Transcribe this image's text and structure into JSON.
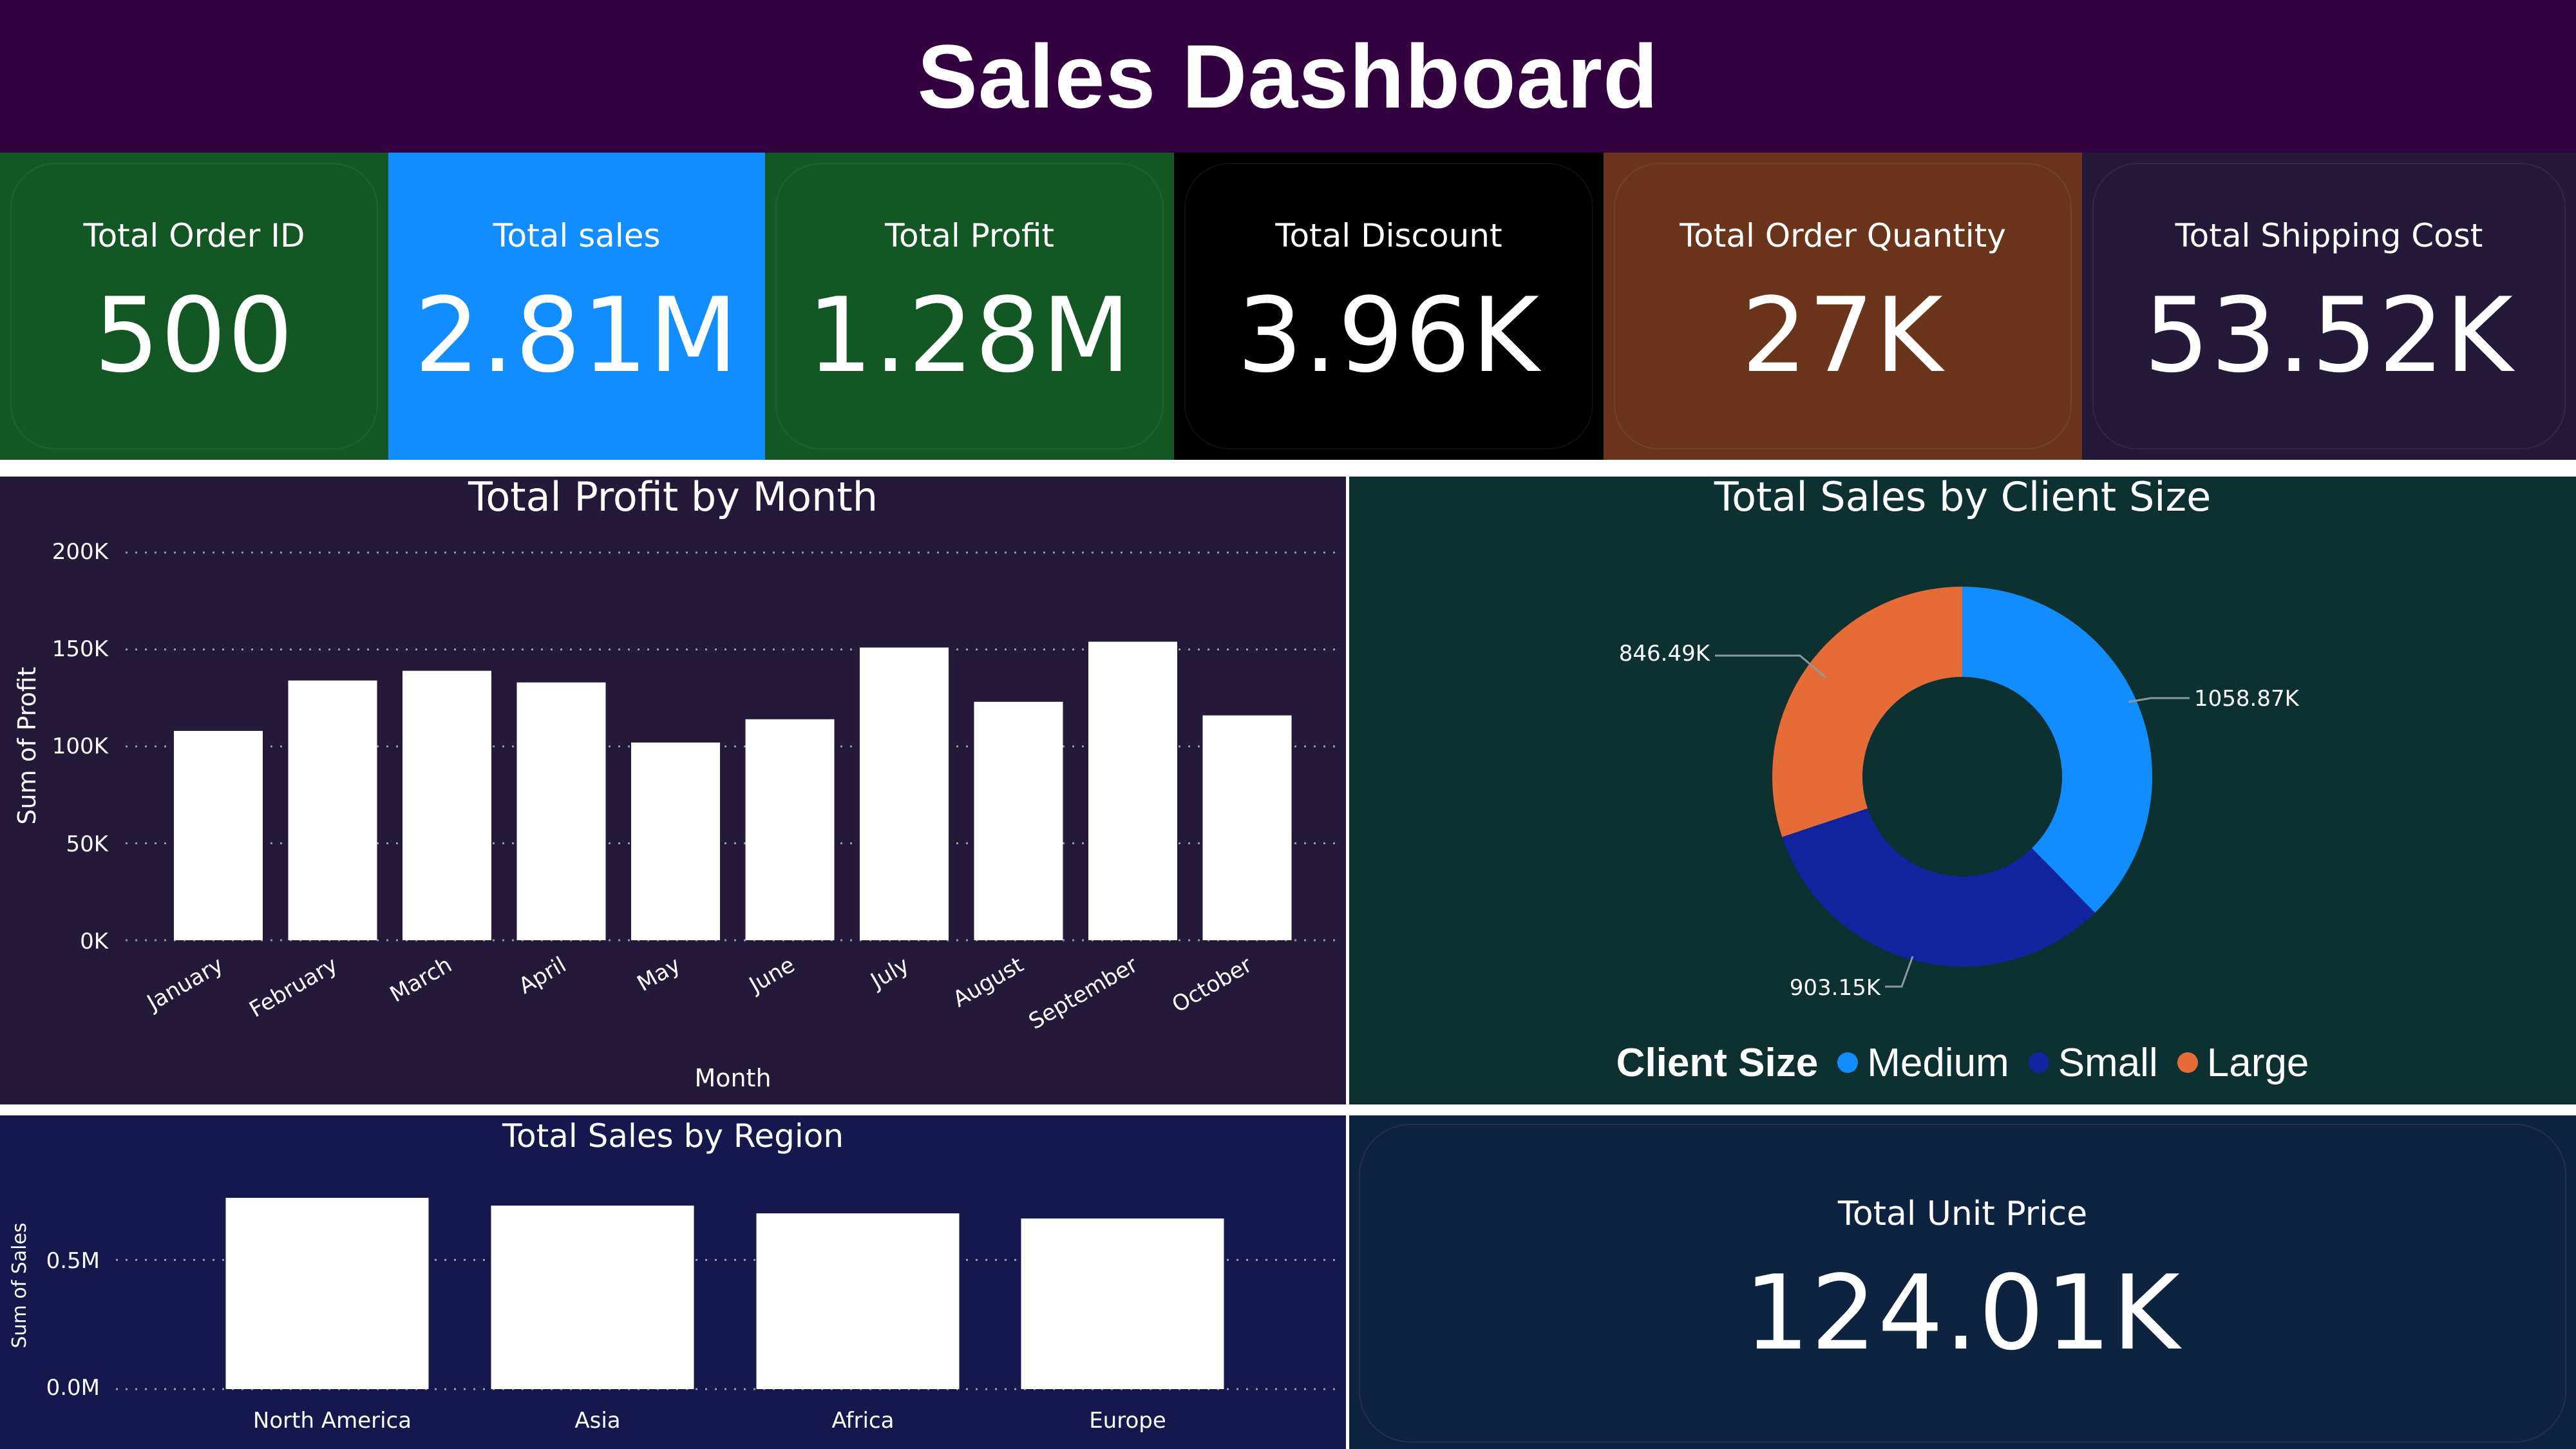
{
  "header": {
    "title": "Sales Dashboard"
  },
  "kpis": [
    {
      "label": "Total Order ID",
      "value": "500",
      "color": "#125724"
    },
    {
      "label": "Total sales",
      "value": "2.81M",
      "color": "#118dff"
    },
    {
      "label": "Total Profit",
      "value": "1.28M",
      "color": "#125724"
    },
    {
      "label": "Total Discount",
      "value": "3.96K",
      "color": "#000000"
    },
    {
      "label": "Total Order Quantity",
      "value": "27K",
      "color": "#6b351c"
    },
    {
      "label": "Total Shipping Cost",
      "value": "53.52K",
      "color": "#251939"
    }
  ],
  "profit_chart": {
    "title": "Total Profit by Month",
    "xlabel": "Month",
    "ylabel": "Sum of Profit",
    "y_ticks": [
      "0K",
      "50K",
      "100K",
      "150K",
      "200K"
    ]
  },
  "client_chart": {
    "title": "Total Sales by Client Size",
    "legend_title": "Client Size",
    "labels": [
      "1058.87K",
      "903.15K",
      "846.49K"
    ]
  },
  "region_chart": {
    "title": "Total Sales by Region",
    "ylabel": "Sum of Sales",
    "y_ticks": [
      "0.0M",
      "0.5M"
    ]
  },
  "unit_price": {
    "label": "Total Unit Price",
    "value": "124.01K"
  },
  "chart_data": [
    {
      "type": "bar",
      "title": "Total Profit by Month",
      "xlabel": "Month",
      "ylabel": "Sum of Profit",
      "categories": [
        "January",
        "February",
        "March",
        "April",
        "May",
        "June",
        "July",
        "August",
        "September",
        "October"
      ],
      "values": [
        108000,
        134000,
        139000,
        133000,
        102000,
        114000,
        151000,
        123000,
        154000,
        116000
      ],
      "ylim": [
        0,
        200000
      ],
      "grid": true
    },
    {
      "type": "pie",
      "title": "Total Sales by Client Size",
      "legend_title": "Client Size",
      "categories": [
        "Medium",
        "Small",
        "Large"
      ],
      "values": [
        1058.87,
        903.15,
        846.49
      ],
      "units": "K",
      "colors": [
        "#118dff",
        "#12239e",
        "#e66c37"
      ],
      "donut": true,
      "legend": "bottom"
    },
    {
      "type": "bar",
      "title": "Total Sales by Region",
      "ylabel": "Sum of Sales",
      "categories": [
        "North America",
        "Asia",
        "Africa",
        "Europe"
      ],
      "values": [
        0.74,
        0.71,
        0.68,
        0.66
      ],
      "units": "M",
      "ylim": [
        0,
        0.74
      ],
      "grid": true
    }
  ]
}
